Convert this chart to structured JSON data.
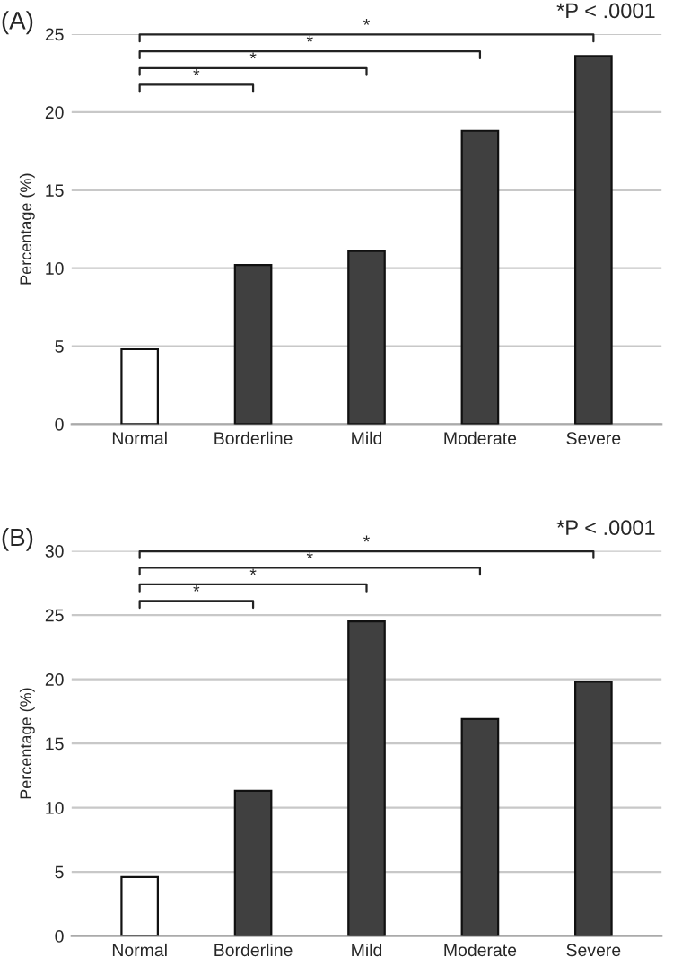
{
  "chart_data": [
    {
      "type": "bar",
      "title": "(A)",
      "ylabel": "Percentage (%)",
      "categories": [
        "Normal",
        "Borderline",
        "Mild",
        "Moderate",
        "Severe"
      ],
      "values": [
        4.8,
        10.2,
        11.1,
        18.8,
        23.6
      ],
      "colors": [
        "#ffffff",
        "#404040",
        "#404040",
        "#404040",
        "#404040"
      ],
      "ylim": [
        0,
        25
      ],
      "yticks": [
        0,
        5,
        10,
        15,
        20,
        25
      ],
      "grid": "y",
      "annotations": [
        "*P < .0001",
        "*",
        "*",
        "*",
        "*"
      ]
    },
    {
      "type": "bar",
      "title": "(B)",
      "ylabel": "Percentage (%)",
      "categories": [
        "Normal",
        "Borderline",
        "Mild",
        "Moderate",
        "Severe"
      ],
      "values": [
        4.6,
        11.3,
        24.5,
        16.9,
        19.8
      ],
      "colors": [
        "#ffffff",
        "#404040",
        "#404040",
        "#404040",
        "#404040"
      ],
      "ylim": [
        0,
        30
      ],
      "yticks": [
        0,
        5,
        10,
        15,
        20,
        25,
        30
      ],
      "grid": "y",
      "annotations": [
        "*P < .0001",
        "*",
        "*",
        "*",
        "*"
      ]
    }
  ]
}
